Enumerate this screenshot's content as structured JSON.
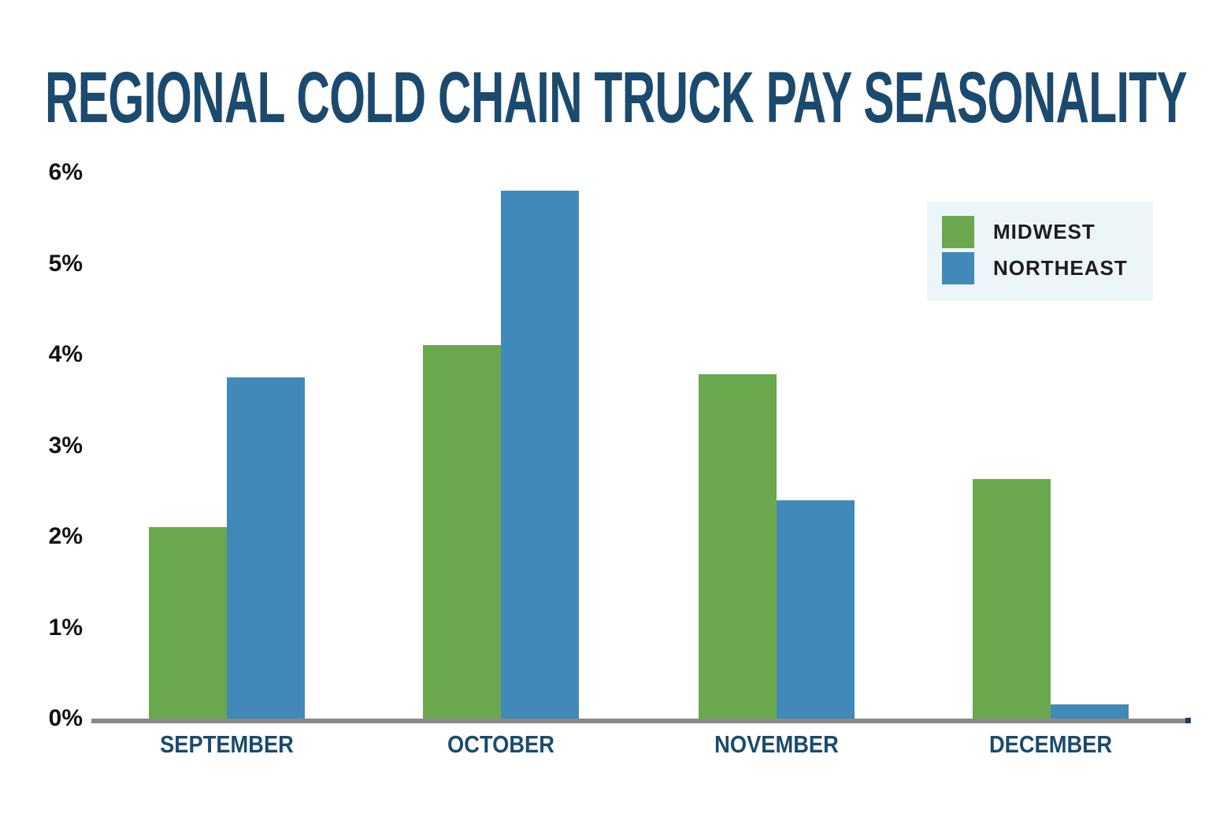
{
  "title": "REGIONAL COLD CHAIN TRUCK PAY SEASONALITY",
  "colors": {
    "midwest": "#6aa84e",
    "northeast": "#4189b8",
    "title_navy": "#1b4a6e",
    "axis_gray": "#8a8a8a",
    "axis_cap_navy": "#1e3a68",
    "tick_text": "#121212",
    "legend_bg": "#ecf6f9",
    "legend_text": "#1d1d1b"
  },
  "chart_data": {
    "type": "bar",
    "categories": [
      "SEPTEMBER",
      "OCTOBER",
      "NOVEMBER",
      "DECEMBER"
    ],
    "series": [
      {
        "name": "MIDWEST",
        "color_key": "midwest",
        "values": [
          2.1,
          4.1,
          3.78,
          2.63
        ]
      },
      {
        "name": "NORTHEAST",
        "color_key": "northeast",
        "values": [
          3.75,
          5.8,
          2.4,
          0.16
        ]
      }
    ],
    "title": "REGIONAL COLD CHAIN TRUCK PAY SEASONALITY",
    "xlabel": "",
    "ylabel": "",
    "y_tick_labels": [
      "0%",
      "1%",
      "2%",
      "3%",
      "4%",
      "5%",
      "6%"
    ],
    "ylim": [
      0,
      6
    ],
    "grid": false,
    "legend_position": "top-right"
  },
  "legend": {
    "items": [
      {
        "label": "MIDWEST",
        "color_key": "midwest"
      },
      {
        "label": "NORTHEAST",
        "color_key": "northeast"
      }
    ]
  }
}
